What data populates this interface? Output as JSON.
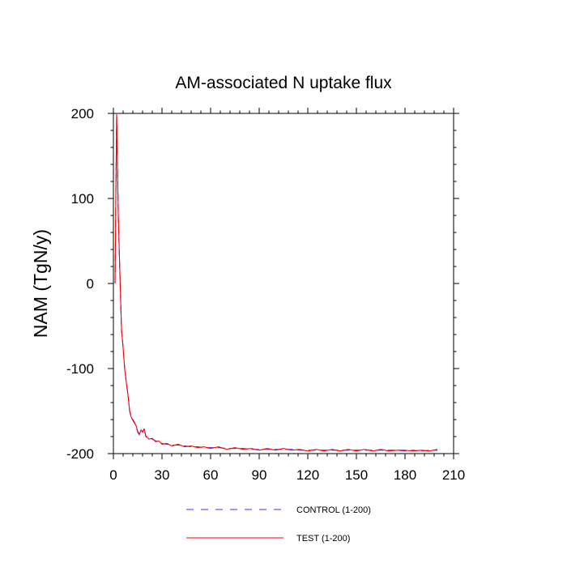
{
  "chart_data": {
    "type": "line",
    "title": "AM-associated N uptake flux",
    "xlabel": "",
    "ylabel": "NAM  (TgN/y)",
    "xlim": [
      0,
      210
    ],
    "ylim": [
      -200,
      200
    ],
    "x_ticks": [
      "0",
      "30",
      "60",
      "90",
      "120",
      "150",
      "180",
      "210"
    ],
    "y_ticks": [
      "200",
      "100",
      "0",
      "-100",
      "-200"
    ],
    "grid": false,
    "legend_position": "bottom",
    "series": [
      {
        "name": "CONTROL (1-200)",
        "color": "#3333ff",
        "dash": "dashed",
        "x": [
          1,
          2,
          3,
          4,
          5,
          6,
          7,
          8,
          9,
          10,
          11,
          12,
          13,
          14,
          15,
          16,
          17,
          18,
          19,
          20,
          22,
          24,
          26,
          28,
          30,
          33,
          36,
          40,
          44,
          48,
          52,
          56,
          60,
          65,
          70,
          75,
          80,
          85,
          90,
          95,
          100,
          105,
          110,
          115,
          120,
          125,
          130,
          135,
          140,
          145,
          150,
          155,
          160,
          165,
          170,
          175,
          180,
          185,
          190,
          195,
          200
        ],
        "values": [
          0,
          200,
          80,
          10,
          -55,
          -75,
          -100,
          -118,
          -130,
          -150,
          -158,
          -160,
          -163,
          -168,
          -175,
          -178,
          -172,
          -175,
          -170,
          -180,
          -182,
          -183,
          -185,
          -186,
          -188,
          -189,
          -190,
          -190,
          -191,
          -192,
          -192,
          -193,
          -193,
          -193,
          -194,
          -194,
          -194,
          -195,
          -195,
          -195,
          -195,
          -195,
          -195,
          -196,
          -196,
          -196,
          -196,
          -196,
          -196,
          -196,
          -196,
          -196,
          -196,
          -196,
          -196,
          -196,
          -197,
          -196,
          -197,
          -196,
          -196
        ]
      },
      {
        "name": "TEST (1-200)",
        "color": "#ff0000",
        "dash": "solid",
        "x": [
          1,
          2,
          3,
          4,
          5,
          6,
          7,
          8,
          9,
          10,
          11,
          12,
          13,
          14,
          15,
          16,
          17,
          18,
          19,
          20,
          22,
          24,
          26,
          28,
          30,
          33,
          36,
          40,
          44,
          48,
          52,
          56,
          60,
          65,
          70,
          75,
          80,
          85,
          90,
          95,
          100,
          105,
          110,
          115,
          120,
          125,
          130,
          135,
          140,
          145,
          150,
          155,
          160,
          165,
          170,
          175,
          180,
          185,
          190,
          195,
          200
        ],
        "values": [
          0,
          198,
          82,
          12,
          -53,
          -76,
          -101,
          -117,
          -131,
          -149,
          -157,
          -161,
          -164,
          -167,
          -174,
          -177,
          -173,
          -174,
          -171,
          -179,
          -183,
          -182,
          -186,
          -185,
          -189,
          -188,
          -191,
          -189,
          -192,
          -191,
          -193,
          -192,
          -194,
          -192,
          -195,
          -193,
          -195,
          -194,
          -196,
          -194,
          -196,
          -194,
          -196,
          -195,
          -197,
          -195,
          -197,
          -195,
          -197,
          -195,
          -197,
          -195,
          -197,
          -195,
          -197,
          -196,
          -196,
          -197,
          -196,
          -197,
          -195
        ]
      }
    ]
  }
}
